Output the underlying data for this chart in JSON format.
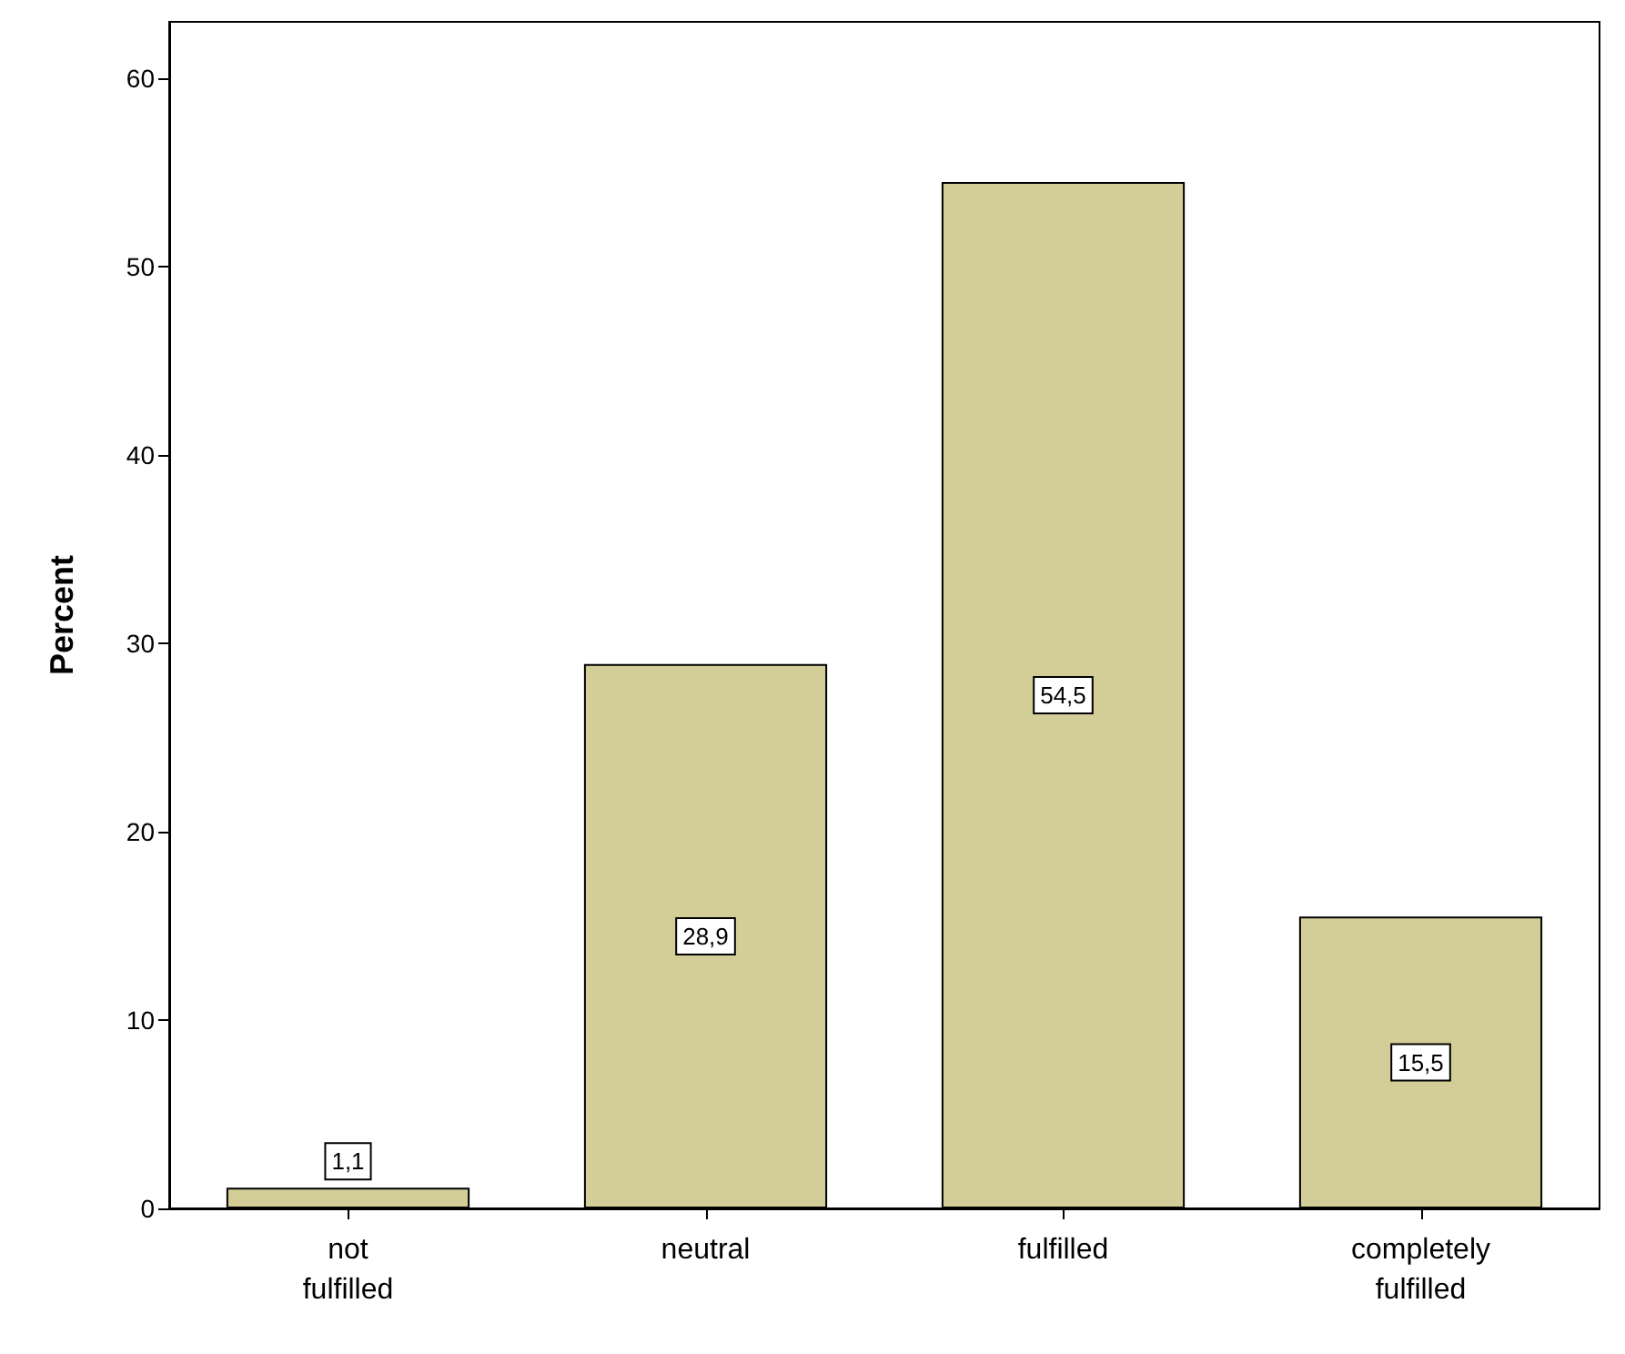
{
  "chart_data": {
    "type": "bar",
    "ylabel": "Percent",
    "categories": [
      "not fulfilled",
      "neutral",
      "fulfilled",
      "completely fulfilled"
    ],
    "values": [
      1.1,
      28.9,
      54.5,
      15.5
    ],
    "value_labels": [
      "1,1",
      "28,9",
      "54,5",
      "15,5"
    ],
    "color": "#d3cd97",
    "ylim": [
      0,
      63
    ],
    "yticks": [
      0,
      10,
      20,
      30,
      40,
      50,
      60
    ]
  }
}
